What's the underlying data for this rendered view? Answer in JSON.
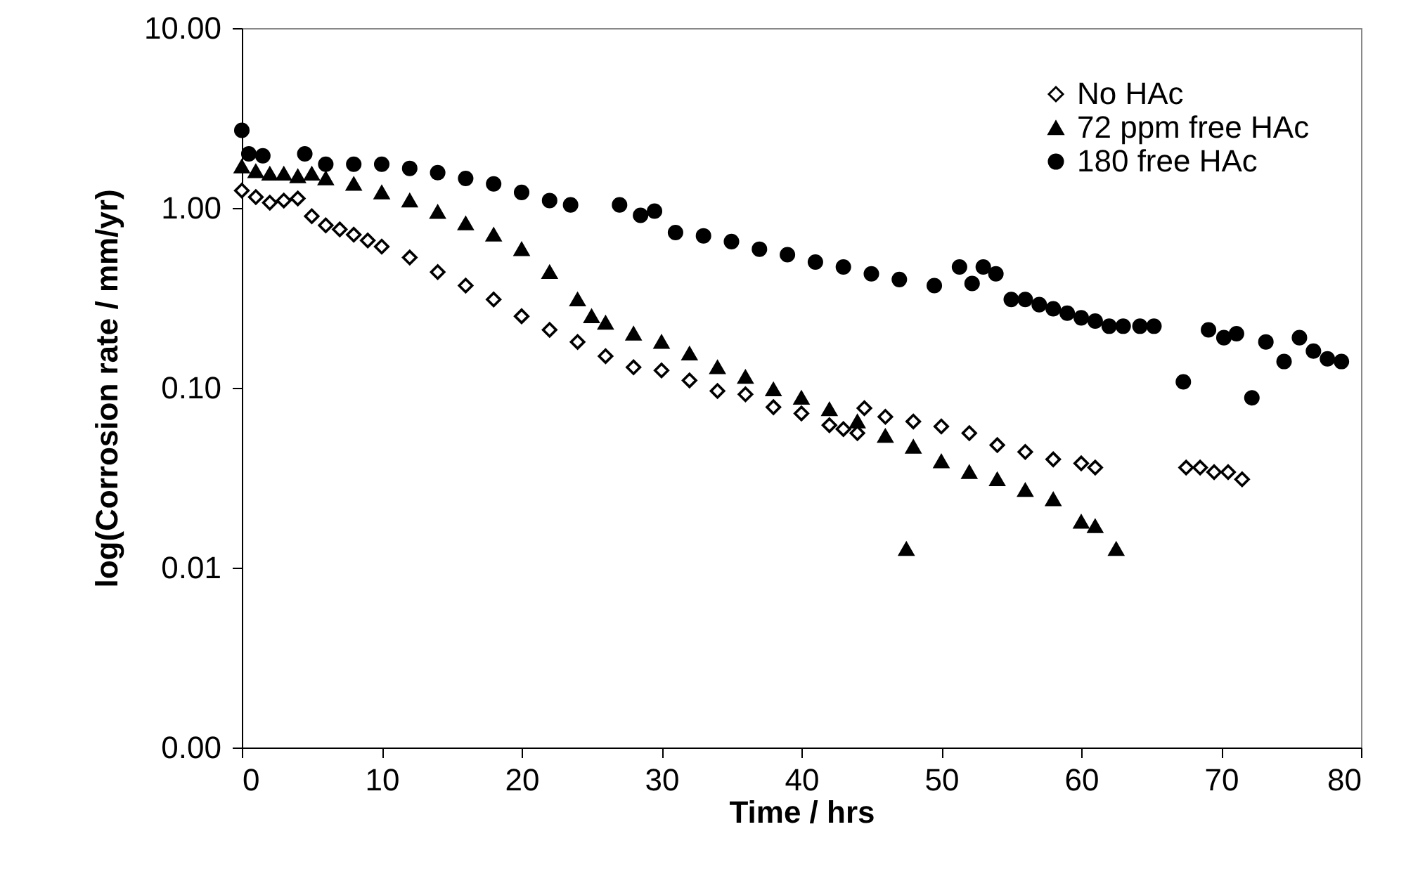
{
  "chart_data": {
    "type": "scatter",
    "xlabel": "Time / hrs",
    "ylabel": "log(Corrosion rate / mm/yr)",
    "log": "y",
    "grid": false,
    "legend": "top right",
    "xlim": [
      0,
      80
    ],
    "xticks": [
      0,
      10,
      20,
      30,
      40,
      50,
      60,
      70,
      80
    ],
    "ylim": [
      0.001,
      10
    ],
    "yticks": [
      {
        "value": 0.001,
        "label": "0.00"
      },
      {
        "value": 0.01,
        "label": "0.01"
      },
      {
        "value": 0.1,
        "label": "0.10"
      },
      {
        "value": 1,
        "label": "1.00"
      },
      {
        "value": 10,
        "label": "10.00"
      }
    ],
    "series": [
      {
        "name": "No HAc",
        "color": "#000000",
        "marker": "diamond",
        "x": [
          0,
          1,
          2,
          3,
          4,
          5,
          6,
          7,
          8,
          9,
          10,
          12,
          14,
          16,
          18,
          20,
          22,
          24,
          26,
          28,
          30,
          32,
          34,
          36,
          38,
          40,
          42,
          43,
          44,
          44.5,
          46,
          48,
          50,
          52,
          54,
          56,
          58,
          60,
          61,
          67.5,
          68.5,
          69.5,
          70.5,
          71.5
        ],
        "values": [
          1.25,
          1.15,
          1.07,
          1.1,
          1.13,
          0.9,
          0.8,
          0.76,
          0.71,
          0.66,
          0.61,
          0.53,
          0.44,
          0.37,
          0.31,
          0.25,
          0.21,
          0.18,
          0.15,
          0.13,
          0.125,
          0.11,
          0.096,
          0.092,
          0.078,
          0.072,
          0.062,
          0.059,
          0.056,
          0.077,
          0.069,
          0.065,
          0.061,
          0.056,
          0.048,
          0.044,
          0.04,
          0.038,
          0.036,
          0.036,
          0.036,
          0.034,
          0.034,
          0.031
        ]
      },
      {
        "name": "72 ppm free HAc",
        "color": "#000000",
        "marker": "triangle",
        "x": [
          0,
          1,
          2,
          3,
          4,
          5,
          6,
          8,
          10,
          12,
          14,
          16,
          18,
          20,
          22,
          24,
          25,
          26,
          28,
          30,
          32,
          34,
          36,
          38,
          40,
          42,
          44,
          46,
          47.5,
          48,
          50,
          52,
          54,
          56,
          58,
          60,
          61,
          62.5
        ],
        "values": [
          1.7,
          1.6,
          1.55,
          1.55,
          1.5,
          1.55,
          1.46,
          1.36,
          1.22,
          1.1,
          0.95,
          0.82,
          0.71,
          0.59,
          0.44,
          0.31,
          0.25,
          0.23,
          0.2,
          0.18,
          0.155,
          0.13,
          0.115,
          0.098,
          0.088,
          0.076,
          0.065,
          0.054,
          0.0127,
          0.047,
          0.039,
          0.034,
          0.031,
          0.027,
          0.024,
          0.018,
          0.017,
          0.0127
        ]
      },
      {
        "name": "180 free HAc",
        "color": "#000000",
        "marker": "circle",
        "x": [
          0,
          0.5,
          1.5,
          4.5,
          6,
          8,
          10,
          12,
          14,
          16,
          18,
          20,
          22,
          23.5,
          27,
          28.5,
          29.5,
          31,
          33,
          35,
          37,
          39,
          41,
          43,
          45,
          47,
          49.5,
          51.3,
          52.2,
          53,
          53.9,
          55,
          56,
          57,
          58,
          59,
          60,
          61,
          62,
          63,
          64.2,
          65.2,
          67.3,
          69.1,
          70.2,
          71.1,
          72.2,
          73.2,
          74.5,
          75.6,
          76.6,
          77.6,
          78.6
        ],
        "values": [
          2.7,
          2.0,
          1.95,
          2.0,
          1.75,
          1.75,
          1.75,
          1.66,
          1.57,
          1.46,
          1.36,
          1.22,
          1.1,
          1.04,
          1.04,
          0.91,
          0.96,
          0.73,
          0.7,
          0.65,
          0.59,
          0.55,
          0.5,
          0.47,
          0.43,
          0.4,
          0.37,
          0.47,
          0.38,
          0.47,
          0.43,
          0.31,
          0.31,
          0.29,
          0.275,
          0.26,
          0.245,
          0.235,
          0.22,
          0.22,
          0.22,
          0.22,
          0.108,
          0.21,
          0.19,
          0.2,
          0.088,
          0.18,
          0.14,
          0.19,
          0.16,
          0.145,
          0.14
        ]
      }
    ]
  }
}
